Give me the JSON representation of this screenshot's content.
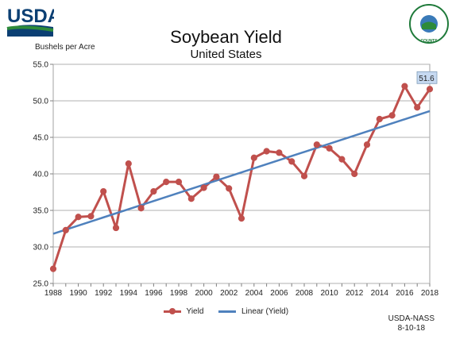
{
  "header": {
    "logo_text": "USDA",
    "seal_text": "AGRICULTURE COUNTS"
  },
  "source": {
    "line1": "USDA-NASS",
    "line2": "8-10-18"
  },
  "colors": {
    "yield": "#c0504d",
    "trend": "#4f81bd",
    "label_bg": "#c6d9f1",
    "grid": "#b0b0b0"
  },
  "chart_data": {
    "type": "line",
    "title": "Soybean Yield",
    "subtitle": "United States",
    "ylabel": "Bushels per Acre",
    "xlabel": "",
    "ylim": [
      25.0,
      55.0
    ],
    "xlim": [
      1988,
      2018
    ],
    "x_ticks": [
      "1988",
      "1990",
      "1992",
      "1994",
      "1996",
      "1998",
      "2000",
      "2002",
      "2004",
      "2006",
      "2008",
      "2010",
      "2012",
      "2014",
      "2016",
      "2018"
    ],
    "y_ticks": [
      "25.0",
      "30.0",
      "35.0",
      "40.0",
      "45.0",
      "50.0",
      "55.0"
    ],
    "grid": true,
    "legend": "bottom",
    "series": [
      {
        "name": "Yield",
        "x": [
          1988,
          1989,
          1990,
          1991,
          1992,
          1993,
          1994,
          1995,
          1996,
          1997,
          1998,
          1999,
          2000,
          2001,
          2002,
          2003,
          2004,
          2005,
          2006,
          2007,
          2008,
          2009,
          2010,
          2011,
          2012,
          2013,
          2014,
          2015,
          2016,
          2017,
          2018
        ],
        "values": [
          27.0,
          32.3,
          34.1,
          34.2,
          37.6,
          32.6,
          41.4,
          35.3,
          37.6,
          38.9,
          38.9,
          36.6,
          38.1,
          39.6,
          38.0,
          33.9,
          42.2,
          43.1,
          42.9,
          41.7,
          39.7,
          44.0,
          43.5,
          42.0,
          40.0,
          44.0,
          47.5,
          48.0,
          52.0,
          49.1,
          51.6
        ]
      },
      {
        "name": "Linear (Yield)",
        "x": [
          1988,
          2018
        ],
        "values": [
          31.8,
          48.6
        ]
      }
    ],
    "annotations": [
      {
        "x": 2018,
        "y": 51.6,
        "text": "51.6"
      }
    ]
  }
}
